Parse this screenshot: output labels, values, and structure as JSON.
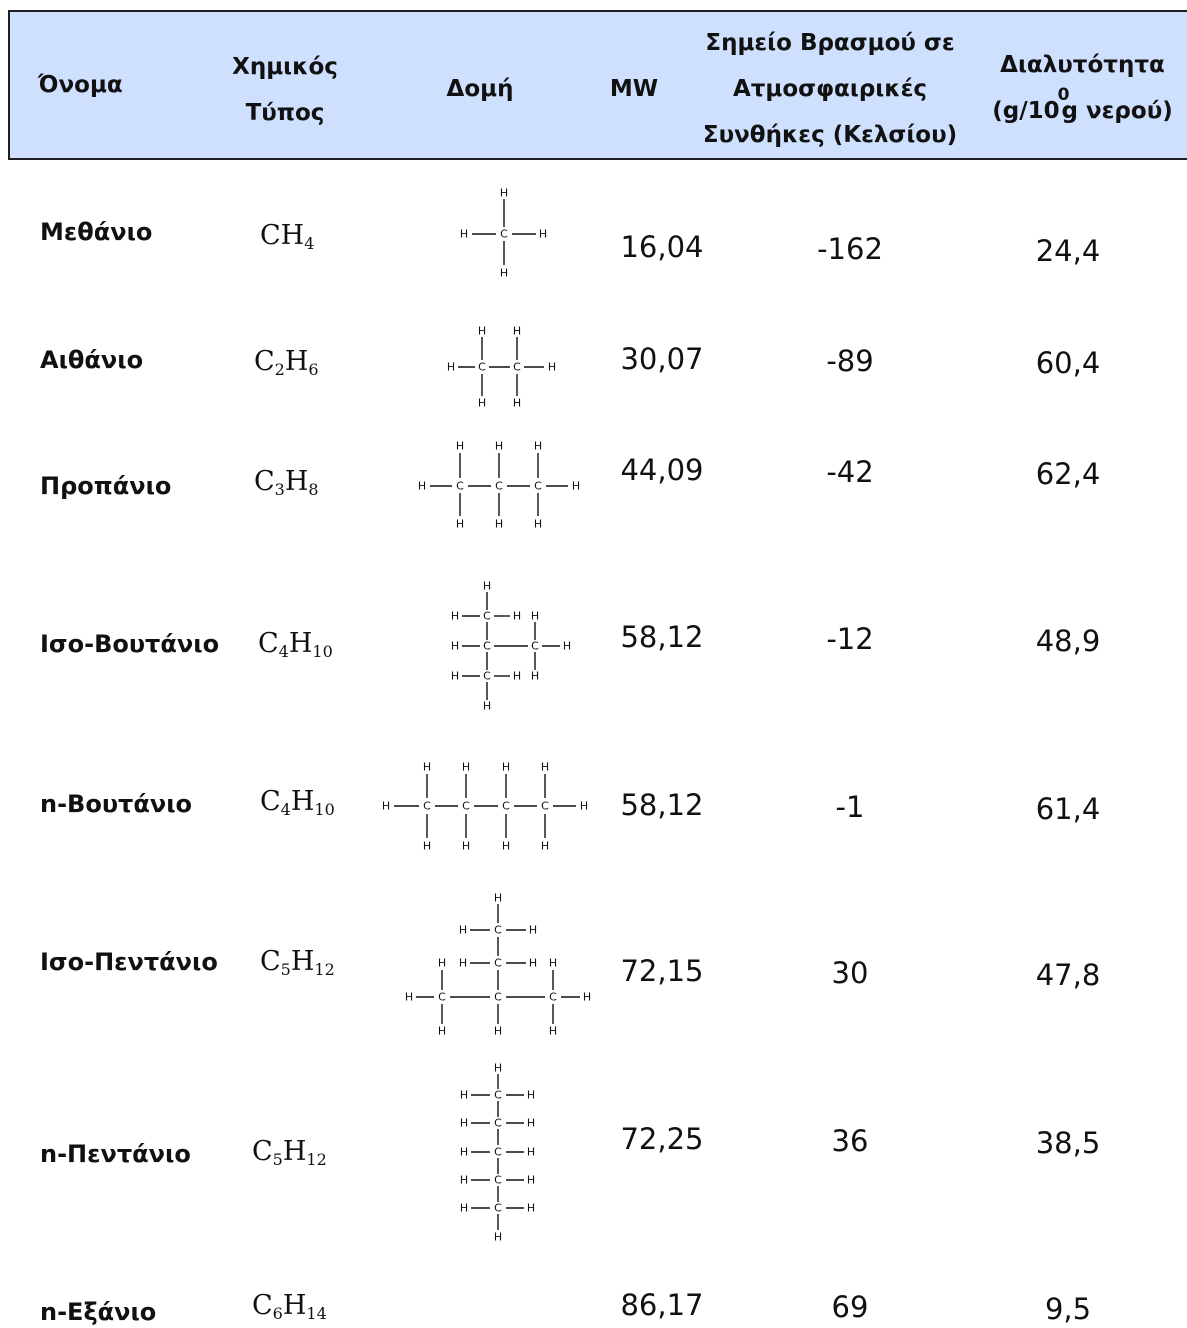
{
  "header": {
    "name": "Όνομα",
    "formula_line1": "Χημικός",
    "formula_line2": "Τύπος",
    "structure": "Δομή",
    "mw": "MW",
    "bp_line1": "Σημείο Βρασμού σε",
    "bp_line2": "Ατμοσφαιρικές",
    "bp_line3": "Συνθήκες (Κελσίου)",
    "sol_line1": "Διαλυτότητα",
    "sol_line2_a": "(g/10",
    "sol_line2_sup": "0",
    "sol_line2_b": "g νερού)"
  },
  "rows": [
    {
      "name": "Μεθάνιο",
      "formula_c": "CH",
      "formula_c_sub": "4",
      "formula_h": "",
      "formula_h_sub": "",
      "mw": "16,04",
      "bp": "-162",
      "sol": "24,4"
    },
    {
      "name": "Αιθάνιο",
      "formula_c": "C",
      "formula_c_sub": "2",
      "formula_h": "H",
      "formula_h_sub": "6",
      "mw": "30,07",
      "bp": "-89",
      "sol": "60,4"
    },
    {
      "name": "Προπάνιο",
      "formula_c": "C",
      "formula_c_sub": "3",
      "formula_h": "H",
      "formula_h_sub": "8",
      "mw": "44,09",
      "bp": "-42",
      "sol": "62,4"
    },
    {
      "name": "Ισο-Βουτάνιο",
      "formula_c": "C",
      "formula_c_sub": "4",
      "formula_h": "H",
      "formula_h_sub": "10",
      "mw": "58,12",
      "bp": "-12",
      "sol": "48,9"
    },
    {
      "name": "n-Βουτάνιο",
      "formula_c": "C",
      "formula_c_sub": "4",
      "formula_h": "H",
      "formula_h_sub": "10",
      "mw": "58,12",
      "bp": "-1",
      "sol": "61,4"
    },
    {
      "name": "Ισο-Πεντάνιο",
      "formula_c": "C",
      "formula_c_sub": "5",
      "formula_h": "H",
      "formula_h_sub": "12",
      "mw": "72,15",
      "bp": "30",
      "sol": "47,8"
    },
    {
      "name": "n-Πεντάνιο",
      "formula_c": "C",
      "formula_c_sub": "5",
      "formula_h": "H",
      "formula_h_sub": "12",
      "mw": "72,25",
      "bp": "36",
      "sol": "38,5"
    },
    {
      "name": "n-Εξάνιο",
      "formula_c": "C",
      "formula_c_sub": "6",
      "formula_h": "H",
      "formula_h_sub": "14",
      "mw": "86,17",
      "bp": "69",
      "sol": "9,5"
    }
  ],
  "structure_atoms": {
    "carbon": "C",
    "hydrogen": "H"
  }
}
